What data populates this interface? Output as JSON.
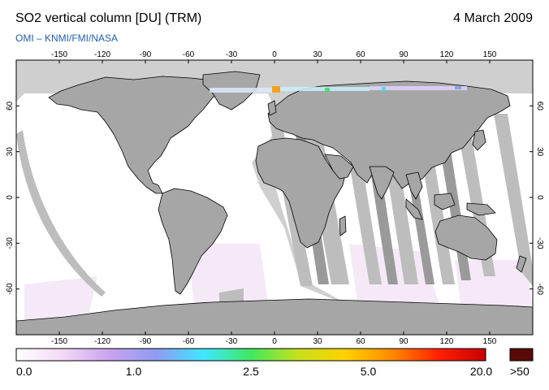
{
  "title": "SO2 vertical column [DU] (TRM)",
  "date": "4 March 2009",
  "subtitle": "OMI  –  KNMI/FMI/NASA",
  "map": {
    "lon_ticks": [
      "-150",
      "-120",
      "-90",
      "-60",
      "-30",
      "0",
      "30",
      "60",
      "90",
      "120",
      "150"
    ],
    "lat_ticks": [
      "60",
      "30",
      "0",
      "-30",
      "-60"
    ],
    "colors": {
      "ocean": "#cfcfcf",
      "land": "#a6a6a6",
      "swath_gap": "#999999",
      "no_data": "#ffffff"
    }
  },
  "colorbar": {
    "labels": [
      "0.0",
      "1.0",
      "2.5",
      "5.0",
      "20.0"
    ],
    "overflow_label": ">50",
    "overflow_color": "#5a0a06",
    "stops": [
      "#ffffff",
      "#f3d8f5",
      "#c9a2f0",
      "#8e9cf2",
      "#3fe7ff",
      "#40e860",
      "#c6e01c",
      "#ffd200",
      "#ff8a00",
      "#ff2000",
      "#c80000"
    ]
  }
}
